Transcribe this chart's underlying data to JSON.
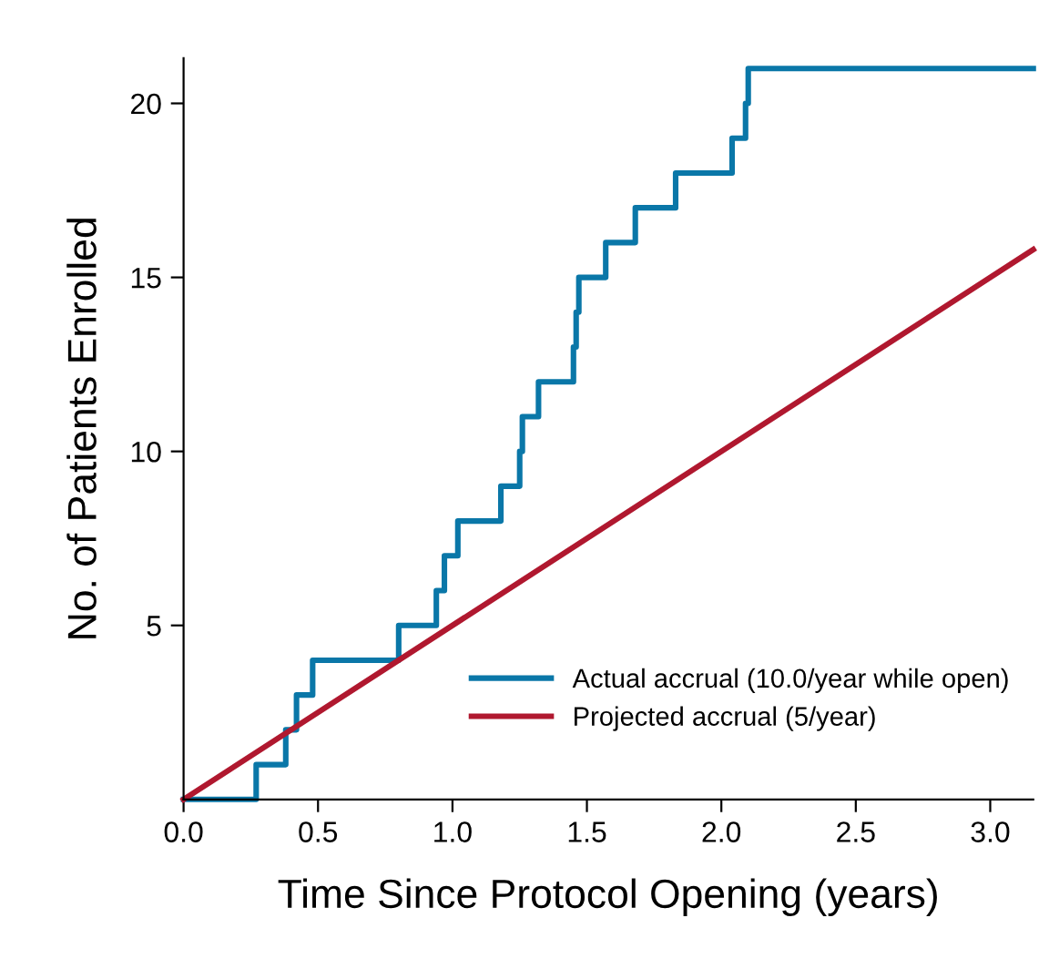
{
  "chart_data": {
    "type": "line",
    "xlabel": "Time Since Protocol Opening (years)",
    "ylabel": "No. of Patients Enrolled",
    "xlim": [
      0,
      3.16
    ],
    "ylim": [
      0,
      21.3
    ],
    "xticks": [
      {
        "value": 0,
        "label": "0.0"
      },
      {
        "value": 0.5,
        "label": "0.5"
      },
      {
        "value": 1,
        "label": "1.0"
      },
      {
        "value": 1.5,
        "label": "1.5"
      },
      {
        "value": 2,
        "label": "2.0"
      },
      {
        "value": 2.5,
        "label": "2.5"
      },
      {
        "value": 3,
        "label": "3.0"
      }
    ],
    "yticks": [
      5,
      10,
      15,
      20
    ],
    "grid": false,
    "legend": "bottom right",
    "marker": "none",
    "series": [
      {
        "name": "Actual accrual (10.0/year while open)",
        "type": "step",
        "color": "#0a77a8",
        "x": [
          0,
          0.27,
          0.38,
          0.42,
          0.48,
          0.8,
          0.94,
          0.97,
          1.02,
          1.18,
          1.25,
          1.26,
          1.32,
          1.45,
          1.46,
          1.47,
          1.57,
          1.68,
          1.83,
          2.04,
          2.09,
          2.1,
          3.16
        ],
        "values": [
          0,
          1,
          2,
          3,
          4,
          5,
          6,
          7,
          8,
          9,
          10,
          11,
          12,
          13,
          14,
          15,
          16,
          17,
          18,
          19,
          20,
          21,
          21
        ]
      },
      {
        "name": "Projected accrual (5/year)",
        "color": "#b0182f",
        "x": [
          0,
          3.16
        ],
        "values": [
          0,
          15.8
        ]
      }
    ]
  }
}
